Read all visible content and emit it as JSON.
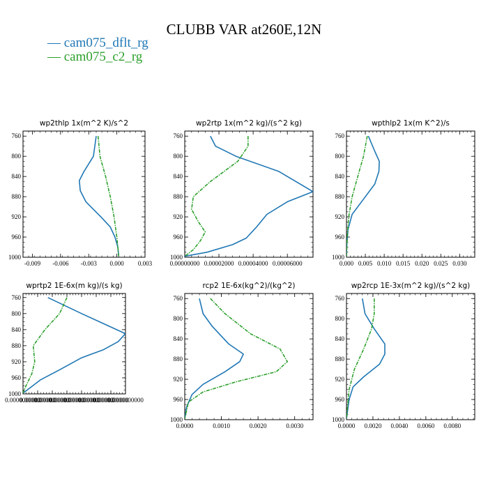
{
  "figure": {
    "title": "CLUBB VAR at260E,12N",
    "legend": [
      {
        "label": "— cam075_dflt_rg",
        "color": "#1f77b4"
      },
      {
        "label": "— cam075_c2_rg",
        "color": "#2ca02c"
      }
    ]
  },
  "chart_data": [
    {
      "type": "line",
      "title": "wp2thlp  1x(m^2 K)/s^2",
      "xlim": [
        -0.01,
        0.003
      ],
      "ylim": [
        1000,
        750
      ],
      "xticks": [
        -0.009,
        -0.006,
        -0.003,
        0.0,
        0.003
      ],
      "xtick_labels": [
        "-0.009",
        "-0.006",
        "-0.003",
        "0.000",
        "0.003"
      ],
      "yticks": [
        760,
        800,
        840,
        880,
        920,
        960,
        1000
      ],
      "ytick_labels": [
        "760",
        "800",
        "840",
        "880",
        "920",
        "960",
        "1000"
      ],
      "series": [
        {
          "name": "cam075_dflt_rg",
          "color": "#1f77b4",
          "dashed": false,
          "points": [
            [
              -0.0022,
              760
            ],
            [
              -0.0025,
              800
            ],
            [
              -0.0035,
              830
            ],
            [
              -0.004,
              848
            ],
            [
              -0.0039,
              868
            ],
            [
              -0.0033,
              890
            ],
            [
              -0.0017,
              920
            ],
            [
              -0.0007,
              940
            ],
            [
              -0.0002,
              960
            ],
            [
              0.0001,
              980
            ],
            [
              0.0002,
              998
            ]
          ]
        },
        {
          "name": "cam075_c2_rg",
          "color": "#2ca02c",
          "dashed": true,
          "points": [
            [
              -0.002,
              760
            ],
            [
              -0.0018,
              800
            ],
            [
              -0.0012,
              840
            ],
            [
              -0.0007,
              880
            ],
            [
              -0.0003,
              920
            ],
            [
              0.0,
              960
            ],
            [
              0.0002,
              998
            ]
          ]
        }
      ]
    },
    {
      "type": "line",
      "title": "wp2rtp  1x(m^2 kg)/(s^2 kg)",
      "xlim": [
        0.0,
        7.5e-05
      ],
      "ylim": [
        1000,
        750
      ],
      "xticks": [
        0.0,
        2e-05,
        4e-05,
        6e-05
      ],
      "xtick_labels": [
        "0.00000000",
        "0.00002000",
        "0.00004000",
        "0.00006000"
      ],
      "yticks": [
        760,
        800,
        840,
        880,
        920,
        960,
        1000
      ],
      "ytick_labels": [
        "760",
        "800",
        "840",
        "880",
        "920",
        "960",
        "1000"
      ],
      "series": [
        {
          "name": "cam075_dflt_rg",
          "color": "#1f77b4",
          "dashed": false,
          "points": [
            [
              1.5e-05,
              760
            ],
            [
              1.8e-05,
              780
            ],
            [
              3e-05,
              800
            ],
            [
              5.5e-05,
              830
            ],
            [
              7.5e-05,
              870
            ],
            [
              6e-05,
              890
            ],
            [
              4.8e-05,
              915
            ],
            [
              4.2e-05,
              940
            ],
            [
              3.6e-05,
              962
            ],
            [
              2.8e-05,
              975
            ],
            [
              1.3e-05,
              990
            ],
            [
              0.0,
              998
            ]
          ]
        },
        {
          "name": "cam075_c2_rg",
          "color": "#2ca02c",
          "dashed": true,
          "points": [
            [
              3.7e-05,
              760
            ],
            [
              3.7e-05,
              780
            ],
            [
              3.1e-05,
              810
            ],
            [
              1.5e-05,
              850
            ],
            [
              5e-06,
              880
            ],
            [
              4e-06,
              905
            ],
            [
              8e-06,
              930
            ],
            [
              1.2e-05,
              950
            ],
            [
              9e-06,
              968
            ],
            [
              5e-06,
              985
            ],
            [
              0.0,
              998
            ]
          ]
        }
      ]
    },
    {
      "type": "line",
      "title": "wpthlp2  1x(m K^2)/s",
      "xlim": [
        0.0,
        0.034
      ],
      "ylim": [
        1000,
        750
      ],
      "xticks": [
        0.0,
        0.005,
        0.01,
        0.015,
        0.02,
        0.025,
        0.03
      ],
      "xtick_labels": [
        "0.000",
        "0.005",
        "0.010",
        "0.015",
        "0.020",
        "0.025",
        "0.030"
      ],
      "yticks": [
        760,
        800,
        840,
        880,
        920,
        960,
        1000
      ],
      "ytick_labels": [
        "760",
        "800",
        "840",
        "880",
        "920",
        "960",
        "1000"
      ],
      "series": [
        {
          "name": "cam075_dflt_rg",
          "color": "#1f77b4",
          "dashed": false,
          "points": [
            [
              0.0058,
              760
            ],
            [
              0.0075,
              790
            ],
            [
              0.0087,
              810
            ],
            [
              0.0086,
              830
            ],
            [
              0.0075,
              855
            ],
            [
              0.0045,
              885
            ],
            [
              0.0015,
              915
            ],
            [
              0.0004,
              945
            ],
            [
              0.0001,
              975
            ],
            [
              0.0,
              998
            ]
          ]
        },
        {
          "name": "cam075_c2_rg",
          "color": "#2ca02c",
          "dashed": true,
          "points": [
            [
              0.0055,
              760
            ],
            [
              0.0045,
              800
            ],
            [
              0.003,
              840
            ],
            [
              0.0015,
              880
            ],
            [
              0.0006,
              920
            ],
            [
              0.0002,
              960
            ],
            [
              0.0,
              998
            ]
          ]
        }
      ]
    },
    {
      "type": "line",
      "title": "wprtp2  1E-6x(m kg)/(s kg)",
      "xlim": [
        0.0,
        7e-07
      ],
      "ylim": [
        1000,
        750
      ],
      "xticks": [
        0.0,
        1e-07,
        2e-07,
        3e-07,
        4e-07,
        5e-07,
        6e-07,
        7e-07
      ],
      "xtick_labels": [
        "0.0000000000",
        "0.0000000000",
        "0.0000000000",
        "0.0000000000",
        "0.0000000000",
        "0.0000000000",
        "0.0000000000",
        "0.0000000000"
      ],
      "yticks": [
        760,
        800,
        840,
        880,
        920,
        960,
        1000
      ],
      "ytick_labels": [
        "760",
        "800",
        "840",
        "880",
        "920",
        "960",
        "1000"
      ],
      "series": [
        {
          "name": "cam075_dflt_rg",
          "color": "#1f77b4",
          "dashed": false,
          "points": [
            [
              1.7e-07,
              760
            ],
            [
              4e-07,
              800
            ],
            [
              5.8e-07,
              830
            ],
            [
              7e-07,
              850
            ],
            [
              6.5e-07,
              870
            ],
            [
              5.5e-07,
              890
            ],
            [
              4e-07,
              910
            ],
            [
              2.5e-07,
              940
            ],
            [
              1.2e-07,
              965
            ],
            [
              3e-08,
              990
            ],
            [
              0.0,
              998
            ]
          ]
        },
        {
          "name": "cam075_c2_rg",
          "color": "#2ca02c",
          "dashed": true,
          "points": [
            [
              3e-07,
              760
            ],
            [
              2.5e-07,
              800
            ],
            [
              1.5e-07,
              840
            ],
            [
              7e-08,
              880
            ],
            [
              8e-08,
              920
            ],
            [
              6e-08,
              950
            ],
            [
              2e-08,
              980
            ],
            [
              0.0,
              998
            ]
          ]
        }
      ]
    },
    {
      "type": "line",
      "title": "rcp2  1E-6x(kg^2)/(kg^2)",
      "xlim": [
        0.0,
        0.0035
      ],
      "ylim": [
        1000,
        750
      ],
      "xticks": [
        0.0,
        0.001,
        0.002,
        0.003
      ],
      "xtick_labels": [
        "0.0000",
        "0.0010",
        "0.0020",
        "0.0030"
      ],
      "yticks": [
        760,
        800,
        840,
        880,
        920,
        960,
        1000
      ],
      "ytick_labels": [
        "760",
        "800",
        "840",
        "880",
        "920",
        "960",
        "1000"
      ],
      "series": [
        {
          "name": "cam075_dflt_rg",
          "color": "#1f77b4",
          "dashed": false,
          "points": [
            [
              0.0004,
              760
            ],
            [
              0.0005,
              790
            ],
            [
              0.00075,
              815
            ],
            [
              0.0012,
              850
            ],
            [
              0.0016,
              870
            ],
            [
              0.0015,
              885
            ],
            [
              0.0011,
              905
            ],
            [
              0.0005,
              930
            ],
            [
              0.0002,
              950
            ],
            [
              5e-05,
              975
            ],
            [
              0.0,
              998
            ]
          ]
        },
        {
          "name": "cam075_c2_rg",
          "color": "#2ca02c",
          "dashed": true,
          "points": [
            [
              0.0007,
              760
            ],
            [
              0.0011,
              790
            ],
            [
              0.0018,
              830
            ],
            [
              0.0026,
              860
            ],
            [
              0.0028,
              885
            ],
            [
              0.0025,
              905
            ],
            [
              0.0014,
              925
            ],
            [
              0.0005,
              945
            ],
            [
              0.0001,
              965
            ],
            [
              0.0,
              998
            ]
          ]
        }
      ]
    },
    {
      "type": "line",
      "title": "wp2rcp  1E-3x(m^2 kg)/(s^2 kg)",
      "xlim": [
        0.0,
        0.0097
      ],
      "ylim": [
        1000,
        750
      ],
      "xticks": [
        0.0,
        0.002,
        0.004,
        0.006,
        0.008
      ],
      "xtick_labels": [
        "0.0000",
        "0.0020",
        "0.0040",
        "0.0060",
        "0.0080"
      ],
      "yticks": [
        760,
        800,
        840,
        880,
        920,
        960,
        1000
      ],
      "ytick_labels": [
        "760",
        "800",
        "840",
        "880",
        "920",
        "960",
        "1000"
      ],
      "series": [
        {
          "name": "cam075_dflt_rg",
          "color": "#1f77b4",
          "dashed": false,
          "points": [
            [
              0.0012,
              760
            ],
            [
              0.0014,
              790
            ],
            [
              0.0021,
              820
            ],
            [
              0.0029,
              850
            ],
            [
              0.0029,
              870
            ],
            [
              0.0025,
              890
            ],
            [
              0.0013,
              915
            ],
            [
              0.0005,
              935
            ],
            [
              0.0002,
              960
            ],
            [
              0.0,
              998
            ]
          ]
        },
        {
          "name": "cam075_c2_rg",
          "color": "#2ca02c",
          "dashed": true,
          "points": [
            [
              0.0021,
              760
            ],
            [
              0.0021,
              790
            ],
            [
              0.0019,
              820
            ],
            [
              0.0013,
              860
            ],
            [
              0.0006,
              900
            ],
            [
              0.0002,
              940
            ],
            [
              0.0,
              998
            ]
          ]
        }
      ]
    }
  ]
}
